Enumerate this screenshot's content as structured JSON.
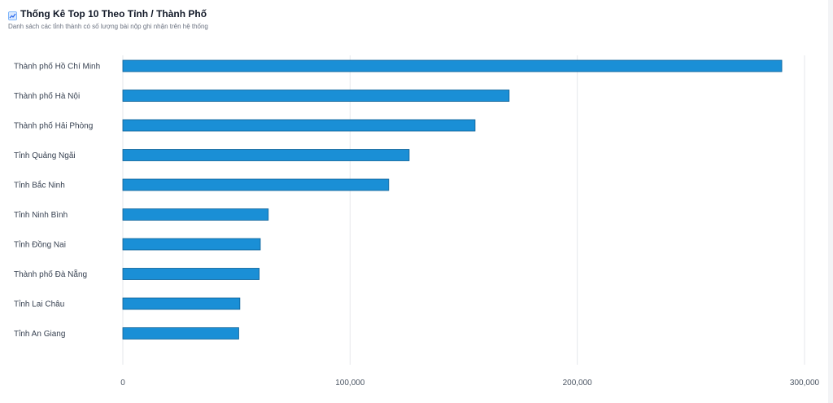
{
  "header": {
    "icon": "chart-icon",
    "title": "Thống Kê Top 10 Theo Tỉnh / Thành Phố",
    "subtitle": "Danh sách các tỉnh thành có số lượng bài nộp ghi nhận trên hệ thống"
  },
  "colors": {
    "bar_fill": "#1a8fd6",
    "bar_stroke": "#0b5f96",
    "grid": "#e5e7eb"
  },
  "chart_data": {
    "type": "bar",
    "orientation": "horizontal",
    "categories": [
      "Thành phố Hồ Chí Minh",
      "Thành phố Hà Nội",
      "Thành phố Hải Phòng",
      "Tỉnh Quảng Ngãi",
      "Tỉnh Bắc Ninh",
      "Tỉnh Ninh Bình",
      "Tỉnh Đồng Nai",
      "Thành phố Đà Nẵng",
      "Tỉnh Lai Châu",
      "Tỉnh An Giang"
    ],
    "values": [
      290000,
      170000,
      155000,
      126000,
      117000,
      64000,
      60500,
      60000,
      51500,
      51000
    ],
    "xlim": [
      0,
      300000
    ],
    "xticks": [
      0,
      100000,
      200000,
      300000
    ],
    "xtick_labels": [
      "0",
      "100,000",
      "200,000",
      "300,000"
    ],
    "grid": true,
    "legend": "none"
  }
}
